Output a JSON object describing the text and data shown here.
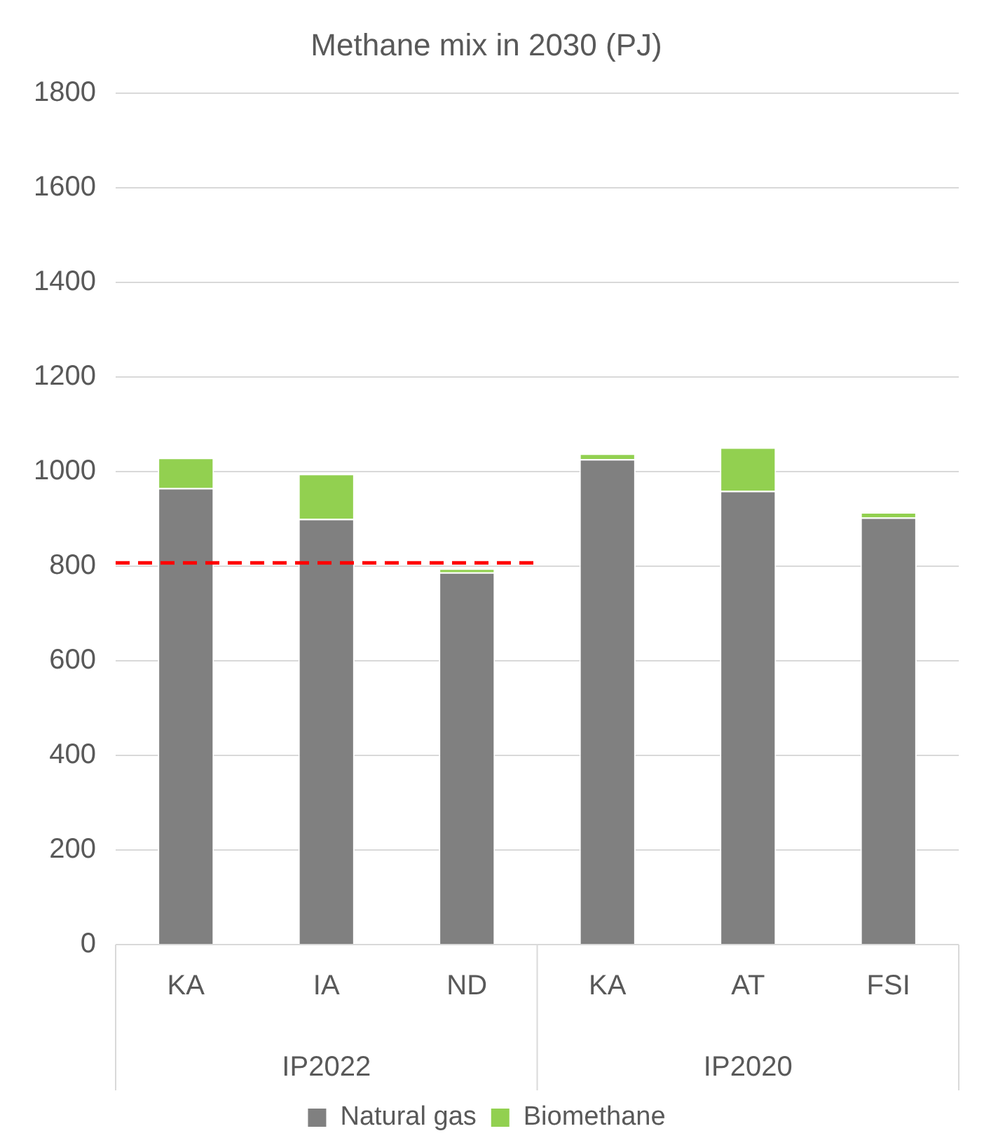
{
  "chart_data": {
    "type": "bar",
    "title": "Methane mix in 2030 (PJ)",
    "stacked": true,
    "categories": [
      "KA",
      "IA",
      "ND",
      "KA",
      "AT",
      "FSI"
    ],
    "series": [
      {
        "name": "Natural gas",
        "color": "#808080",
        "values": [
          965,
          900,
          787,
          1026,
          959,
          903
        ]
      },
      {
        "name": "Biomethane",
        "color": "#92d050",
        "values": [
          64,
          95,
          8,
          12,
          92,
          11
        ]
      }
    ],
    "ylim": [
      0,
      1800
    ],
    "yticks": [
      0,
      200,
      400,
      600,
      800,
      1000,
      1200,
      1400,
      1600,
      1800
    ],
    "grid": "y",
    "legend": "bottom",
    "ref_lines": [
      {
        "axis": "y",
        "value": 807,
        "color": "#ff0000",
        "line_style": "dashed"
      }
    ],
    "annotations": [
      "IP2022",
      "IP2020"
    ]
  }
}
